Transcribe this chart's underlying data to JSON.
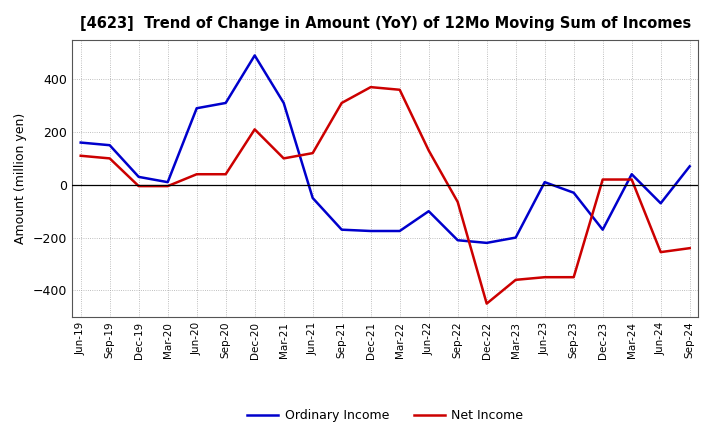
{
  "title": "[4623]  Trend of Change in Amount (YoY) of 12Mo Moving Sum of Incomes",
  "ylabel": "Amount (million yen)",
  "xlabels": [
    "Jun-19",
    "Sep-19",
    "Dec-19",
    "Mar-20",
    "Jun-20",
    "Sep-20",
    "Dec-20",
    "Mar-21",
    "Jun-21",
    "Sep-21",
    "Dec-21",
    "Mar-22",
    "Jun-22",
    "Sep-22",
    "Dec-22",
    "Mar-23",
    "Jun-23",
    "Sep-23",
    "Dec-23",
    "Mar-24",
    "Jun-24",
    "Sep-24"
  ],
  "ordinary_income": [
    160,
    150,
    30,
    10,
    290,
    310,
    490,
    310,
    -50,
    -170,
    -175,
    -175,
    -100,
    -210,
    -220,
    -200,
    10,
    -30,
    -170,
    40,
    -70,
    70
  ],
  "net_income": [
    110,
    100,
    -5,
    -5,
    40,
    40,
    210,
    100,
    120,
    310,
    370,
    360,
    130,
    -65,
    -450,
    -360,
    -350,
    -350,
    20,
    20,
    -255,
    -240
  ],
  "ordinary_color": "#0000cc",
  "net_color": "#cc0000",
  "ylim": [
    -500,
    550
  ],
  "yticks": [
    -400,
    -200,
    0,
    200,
    400
  ],
  "background_color": "#ffffff",
  "grid_color": "#aaaaaa"
}
